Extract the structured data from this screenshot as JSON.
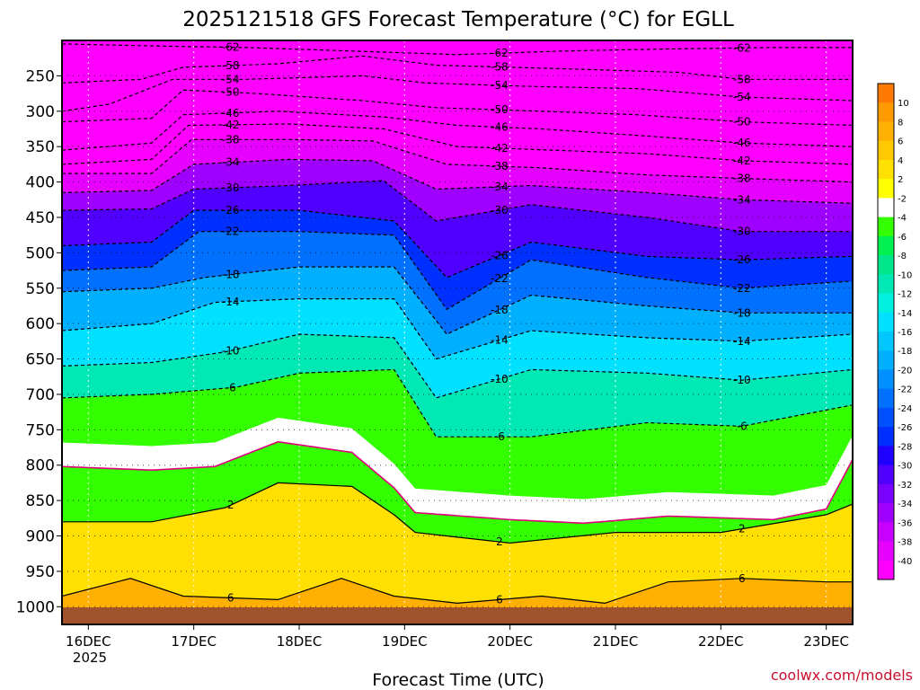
{
  "chart_data": {
    "type": "heatmap",
    "title": "2025121518 GFS Forecast Temperature (°C) for EGLL",
    "xlabel": "Forecast Time (UTC)",
    "ylabel": "",
    "y_pressure_levels": [
      250,
      300,
      350,
      400,
      450,
      500,
      550,
      600,
      650,
      700,
      750,
      800,
      850,
      900,
      950,
      1000
    ],
    "y_range_hpa": [
      200,
      1025
    ],
    "x_ticks": [
      "16DEC",
      "17DEC",
      "18DEC",
      "19DEC",
      "20DEC",
      "21DEC",
      "22DEC",
      "23DEC"
    ],
    "x_tick_sub": "2025",
    "x_range_days": [
      15.75,
      23.25
    ],
    "colorbar_ticks": [
      10,
      8,
      6,
      4,
      2,
      -2,
      -4,
      -6,
      -8,
      -10,
      -12,
      -14,
      -16,
      -18,
      -20,
      -22,
      -24,
      -26,
      -28,
      -30,
      -32,
      -34,
      -36,
      -38,
      -40
    ],
    "colorbar_colors": [
      "#ff7a00",
      "#ff9a00",
      "#ffb000",
      "#ffc800",
      "#ffe000",
      "#ffff00",
      "#ffffff",
      "#33ff00",
      "#00f050",
      "#00e68a",
      "#00e8b4",
      "#00f0e0",
      "#00e0ff",
      "#00c8ff",
      "#00b0ff",
      "#0090ff",
      "#0070ff",
      "#0050ff",
      "#0030ff",
      "#2000ff",
      "#5000ff",
      "#7a00ff",
      "#a000ff",
      "#c800ff",
      "#e600ff",
      "#ff00ff"
    ],
    "freezing_level_hpa": [
      {
        "day": 15.75,
        "hpa": 780
      },
      {
        "day": 16.6,
        "hpa": 785
      },
      {
        "day": 17.2,
        "hpa": 780
      },
      {
        "day": 17.8,
        "hpa": 745
      },
      {
        "day": 18.5,
        "hpa": 760
      },
      {
        "day": 18.9,
        "hpa": 810
      },
      {
        "day": 19.1,
        "hpa": 845
      },
      {
        "day": 20.0,
        "hpa": 855
      },
      {
        "day": 20.7,
        "hpa": 860
      },
      {
        "day": 21.5,
        "hpa": 850
      },
      {
        "day": 22.5,
        "hpa": 855
      },
      {
        "day": 23.0,
        "hpa": 840
      },
      {
        "day": 23.25,
        "hpa": 770
      }
    ],
    "isotherms": [
      {
        "temp": -62,
        "label": "-62",
        "points": [
          [
            15.75,
            205
          ],
          [
            16.7,
            208
          ],
          [
            17.5,
            210
          ],
          [
            18.5,
            215
          ],
          [
            19.5,
            220
          ],
          [
            20.5,
            215
          ],
          [
            21.5,
            212
          ],
          [
            22.5,
            210
          ],
          [
            23.25,
            210
          ]
        ]
      },
      {
        "temp": -58,
        "label": "-58",
        "points": [
          [
            15.75,
            260
          ],
          [
            16.5,
            255
          ],
          [
            16.9,
            238
          ],
          [
            17.8,
            233
          ],
          [
            18.6,
            222
          ],
          [
            19.3,
            235
          ],
          [
            20.5,
            240
          ],
          [
            21.6,
            245
          ],
          [
            22.2,
            255
          ],
          [
            23.25,
            255
          ]
        ]
      },
      {
        "temp": -54,
        "label": "-54",
        "points": [
          [
            15.75,
            300
          ],
          [
            16.2,
            290
          ],
          [
            16.8,
            255
          ],
          [
            17.5,
            255
          ],
          [
            18.6,
            250
          ],
          [
            19.2,
            260
          ],
          [
            20.2,
            265
          ],
          [
            21.2,
            268
          ],
          [
            22.2,
            280
          ],
          [
            23.25,
            285
          ]
        ]
      },
      {
        "temp": -50,
        "label": "-50",
        "points": [
          [
            15.75,
            315
          ],
          [
            16.6,
            310
          ],
          [
            16.9,
            270
          ],
          [
            17.6,
            275
          ],
          [
            18.6,
            285
          ],
          [
            19.3,
            295
          ],
          [
            20.3,
            300
          ],
          [
            21.2,
            305
          ],
          [
            22.2,
            315
          ],
          [
            23.25,
            320
          ]
        ]
      },
      {
        "temp": -46,
        "label": "-46",
        "points": [
          [
            15.75,
            355
          ],
          [
            16.6,
            345
          ],
          [
            16.9,
            305
          ],
          [
            17.8,
            300
          ],
          [
            18.8,
            308
          ],
          [
            19.5,
            320
          ],
          [
            20.3,
            325
          ],
          [
            21.3,
            335
          ],
          [
            22.2,
            345
          ],
          [
            23.25,
            350
          ]
        ]
      },
      {
        "temp": -42,
        "label": "-42",
        "points": [
          [
            15.75,
            375
          ],
          [
            16.6,
            368
          ],
          [
            16.95,
            320
          ],
          [
            17.9,
            318
          ],
          [
            18.8,
            325
          ],
          [
            19.5,
            350
          ],
          [
            20.4,
            355
          ],
          [
            21.3,
            360
          ],
          [
            22.2,
            370
          ],
          [
            23.25,
            375
          ]
        ]
      },
      {
        "temp": -38,
        "label": "-38",
        "points": [
          [
            15.75,
            388
          ],
          [
            16.6,
            388
          ],
          [
            16.98,
            340
          ],
          [
            17.9,
            340
          ],
          [
            18.7,
            342
          ],
          [
            19.4,
            375
          ],
          [
            20.3,
            380
          ],
          [
            21.3,
            390
          ],
          [
            22.2,
            395
          ],
          [
            23.25,
            400
          ]
        ]
      },
      {
        "temp": -34,
        "label": "-34",
        "points": [
          [
            15.75,
            415
          ],
          [
            16.6,
            412
          ],
          [
            17.0,
            375
          ],
          [
            17.9,
            368
          ],
          [
            18.7,
            370
          ],
          [
            19.3,
            410
          ],
          [
            20.2,
            405
          ],
          [
            21.3,
            415
          ],
          [
            22.2,
            425
          ],
          [
            23.25,
            430
          ]
        ]
      },
      {
        "temp": -30,
        "label": "-30",
        "points": [
          [
            15.75,
            440
          ],
          [
            16.6,
            438
          ],
          [
            17.0,
            410
          ],
          [
            17.9,
            405
          ],
          [
            18.8,
            398
          ],
          [
            19.3,
            455
          ],
          [
            20.2,
            432
          ],
          [
            21.3,
            450
          ],
          [
            22.2,
            470
          ],
          [
            23.25,
            470
          ]
        ]
      },
      {
        "temp": -26,
        "label": "-26",
        "points": [
          [
            15.75,
            490
          ],
          [
            16.6,
            485
          ],
          [
            17.0,
            440
          ],
          [
            18.0,
            440
          ],
          [
            18.9,
            455
          ],
          [
            19.4,
            535
          ],
          [
            20.2,
            485
          ],
          [
            21.3,
            505
          ],
          [
            22.2,
            510
          ],
          [
            23.25,
            505
          ]
        ]
      },
      {
        "temp": -22,
        "label": "-22",
        "points": [
          [
            15.75,
            525
          ],
          [
            16.6,
            520
          ],
          [
            17.05,
            470
          ],
          [
            18.0,
            470
          ],
          [
            18.9,
            475
          ],
          [
            19.4,
            580
          ],
          [
            20.2,
            510
          ],
          [
            21.3,
            535
          ],
          [
            22.2,
            550
          ],
          [
            23.25,
            540
          ]
        ]
      },
      {
        "temp": -18,
        "label": "-18",
        "points": [
          [
            15.75,
            555
          ],
          [
            16.6,
            550
          ],
          [
            17.1,
            535
          ],
          [
            18.0,
            520
          ],
          [
            18.9,
            520
          ],
          [
            19.4,
            615
          ],
          [
            20.2,
            560
          ],
          [
            21.3,
            575
          ],
          [
            22.2,
            585
          ],
          [
            23.25,
            585
          ]
        ]
      },
      {
        "temp": -14,
        "label": "-14",
        "points": [
          [
            15.75,
            610
          ],
          [
            16.6,
            600
          ],
          [
            17.2,
            570
          ],
          [
            18.0,
            565
          ],
          [
            18.9,
            565
          ],
          [
            19.3,
            650
          ],
          [
            20.2,
            610
          ],
          [
            21.3,
            620
          ],
          [
            22.2,
            625
          ],
          [
            23.25,
            615
          ]
        ]
      },
      {
        "temp": -10,
        "label": "-10",
        "points": [
          [
            15.75,
            660
          ],
          [
            16.6,
            655
          ],
          [
            17.3,
            640
          ],
          [
            18.0,
            615
          ],
          [
            18.9,
            620
          ],
          [
            19.3,
            705
          ],
          [
            20.2,
            665
          ],
          [
            21.3,
            670
          ],
          [
            22.2,
            680
          ],
          [
            23.25,
            665
          ]
        ]
      },
      {
        "temp": -6,
        "label": "-6",
        "points": [
          [
            15.75,
            705
          ],
          [
            16.6,
            700
          ],
          [
            17.4,
            690
          ],
          [
            18.0,
            670
          ],
          [
            18.9,
            665
          ],
          [
            19.3,
            760
          ],
          [
            20.2,
            760
          ],
          [
            21.3,
            740
          ],
          [
            22.2,
            745
          ],
          [
            23.25,
            715
          ]
        ]
      },
      {
        "temp": 2,
        "label": "2",
        "points": [
          [
            15.75,
            880
          ],
          [
            16.6,
            880
          ],
          [
            17.3,
            860
          ],
          [
            17.8,
            825
          ],
          [
            18.5,
            830
          ],
          [
            18.9,
            870
          ],
          [
            19.1,
            895
          ],
          [
            20.0,
            910
          ],
          [
            21.0,
            895
          ],
          [
            22.0,
            895
          ],
          [
            23.0,
            870
          ],
          [
            23.25,
            855
          ]
        ]
      },
      {
        "temp": 6,
        "label": "6",
        "points": [
          [
            15.75,
            985
          ],
          [
            16.4,
            960
          ],
          [
            16.9,
            985
          ],
          [
            17.8,
            990
          ],
          [
            18.4,
            960
          ],
          [
            18.9,
            985
          ],
          [
            19.5,
            995
          ],
          [
            20.3,
            985
          ],
          [
            20.9,
            995
          ],
          [
            21.5,
            965
          ],
          [
            22.2,
            960
          ],
          [
            23.0,
            965
          ],
          [
            23.25,
            965
          ]
        ]
      }
    ]
  },
  "credit": "coolwx.com/models"
}
